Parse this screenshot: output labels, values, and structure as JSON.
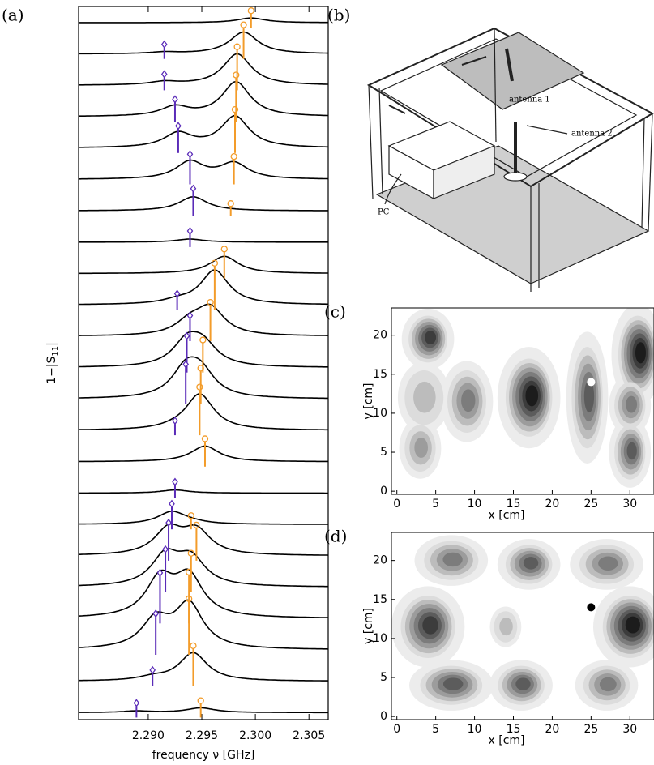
{
  "chart_data": [
    {
      "type": "spectra",
      "panel_label": "(a)",
      "xlabel": "frequency ν [GHz]",
      "ylabel": [
        "1−|S",
        "11",
        "|"
      ],
      "xlim": [
        2.2835,
        2.3068
      ],
      "xticks": [
        {
          "value": 2.29,
          "label": "2.290"
        },
        2.295,
        {
          "value": 2.3,
          "label": "2.300"
        },
        2.305
      ],
      "series": [
        {
          "color": "#f39c2a",
          "x": [
            2.2996,
            2.2989,
            2.2983,
            2.2982,
            2.2981,
            2.298,
            2.2977,
            null,
            2.2971,
            2.2962,
            2.2958,
            2.2951,
            2.2949,
            2.2948,
            2.2953,
            null,
            2.294,
            2.2945,
            2.294,
            2.2938,
            2.2938,
            2.2942,
            2.2949
          ],
          "values": [
            0.15,
            0.7,
            1.0,
            1.1,
            1.0,
            0.5,
            0.0,
            null,
            0.55,
            1.1,
            0.85,
            0.65,
            0.75,
            1.15,
            0.5,
            null,
            0.05,
            0.75,
            0.85,
            1.25,
            1.4,
            0.9,
            0.15
          ]
        },
        {
          "color": "#5a2bb8",
          "x": [
            null,
            2.2915,
            2.2915,
            2.2925,
            2.2928,
            2.2939,
            2.2942,
            2.2939,
            null,
            2.2927,
            2.2939,
            2.2936,
            2.2935,
            2.2925,
            null,
            2.2925,
            2.2922,
            2.2919,
            2.2916,
            2.2911,
            2.2907,
            2.2904,
            2.2889
          ],
          "values": [
            null,
            0.05,
            0.1,
            0.3,
            0.45,
            0.55,
            0.45,
            0.1,
            null,
            0.1,
            0.4,
            0.75,
            0.85,
            0.05,
            null,
            0.1,
            0.4,
            0.8,
            0.95,
            1.2,
            0.9,
            0.1,
            0.05
          ]
        }
      ]
    },
    {
      "type": "contour",
      "panel_label": "(c)",
      "xlabel": "x [cm]",
      "ylabel": "y [cm]",
      "xlim": [
        -0.7,
        33.1
      ],
      "ylim": [
        -0.4,
        23.5
      ],
      "xticks": [
        0,
        5,
        10,
        15,
        20,
        25,
        30
      ],
      "yticks": [
        0,
        5,
        10,
        15,
        20
      ],
      "marker": {
        "x": 25,
        "y": 14,
        "color": "#ffffff"
      },
      "blobs": [
        [
          4,
          19.5,
          2.5,
          3,
          6
        ],
        [
          3.5,
          12,
          2.5,
          3.5,
          2
        ],
        [
          3,
          5.5,
          2,
          3,
          3
        ],
        [
          9,
          11.5,
          2.5,
          4,
          4
        ],
        [
          17,
          12,
          3,
          5,
          7
        ],
        [
          24.5,
          12,
          2,
          6.5,
          5
        ],
        [
          31,
          17.5,
          2.5,
          5,
          7
        ],
        [
          30,
          11,
          2,
          3,
          4
        ],
        [
          30,
          5,
          2,
          3.5,
          5
        ]
      ]
    },
    {
      "type": "contour",
      "panel_label": "(d)",
      "xlabel": "x [cm]",
      "ylabel": "y [cm]",
      "xlim": [
        -0.7,
        33.1
      ],
      "ylim": [
        -0.4,
        23.6
      ],
      "xticks": [
        0,
        5,
        10,
        15,
        20,
        25,
        30
      ],
      "yticks": [
        0,
        5,
        10,
        15,
        20
      ],
      "marker": {
        "x": 25,
        "y": 14,
        "color": "#000000"
      },
      "blobs": [
        [
          7,
          20,
          3.5,
          2.5,
          4
        ],
        [
          17,
          19.5,
          3,
          2.5,
          5
        ],
        [
          27,
          19.5,
          3.5,
          2.5,
          4
        ],
        [
          4,
          11.5,
          3.5,
          4,
          6
        ],
        [
          14,
          11.5,
          1.5,
          2,
          2
        ],
        [
          30,
          11.5,
          3.5,
          4,
          7
        ],
        [
          7,
          4,
          4,
          2.5,
          5
        ],
        [
          16,
          4,
          3,
          2.5,
          5
        ],
        [
          27,
          4,
          3,
          2.5,
          4
        ]
      ]
    }
  ],
  "diagram": {
    "panel_label": "(b)",
    "labels": [
      "antenna 1",
      "antenna 2",
      "PC"
    ]
  }
}
